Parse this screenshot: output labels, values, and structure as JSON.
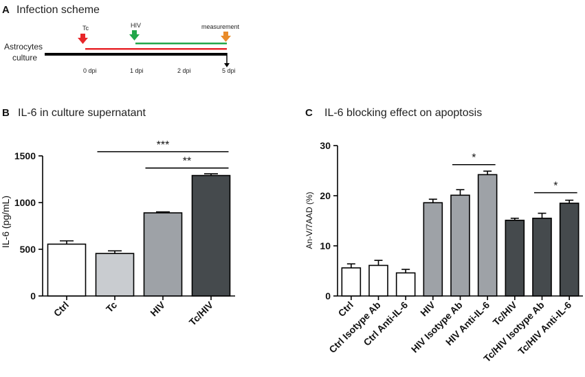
{
  "panelA": {
    "letter": "A",
    "title": "Infection scheme",
    "culture_label_line1": "Astrocytes",
    "culture_label_line2": "culture",
    "marker_tc": "Tc",
    "marker_hiv": "HIV",
    "marker_measurement": "measurement",
    "time_labels": [
      "0 dpi",
      "1 dpi",
      "2 dpi",
      "5 dpi"
    ],
    "colors": {
      "tc": "#e8262a",
      "hiv": "#22a64a",
      "measurement": "#e98b2a",
      "timeline": "#000000"
    }
  },
  "chart_data": [
    {
      "panel": "B",
      "type": "bar",
      "title": "IL-6 in culture supernatant",
      "ylabel": "IL-6 (pg/mL)",
      "xlabel": "",
      "ylim": [
        0,
        1500
      ],
      "yticks": [
        0,
        500,
        1000,
        1500
      ],
      "categories": [
        "Ctrl",
        "Tc",
        "HIV",
        "Tc/HIV"
      ],
      "values": [
        555,
        455,
        890,
        1290
      ],
      "errors": [
        35,
        28,
        10,
        18
      ],
      "colors": [
        "#ffffff",
        "#c9ccd0",
        "#9ea2a7",
        "#454a4d"
      ],
      "significance": [
        {
          "from": 1,
          "to": 3,
          "label": "***",
          "y": 1545
        },
        {
          "from": 2,
          "to": 3,
          "label": "**",
          "y": 1370
        }
      ]
    },
    {
      "panel": "C",
      "type": "bar",
      "title": "IL-6 blocking effect on apoptosis",
      "ylabel": "An-V/7AAD (%)",
      "xlabel": "",
      "ylim": [
        0,
        30
      ],
      "yticks": [
        0,
        10,
        20,
        30
      ],
      "categories": [
        "Ctrl",
        "Ctrl Isotype Ab",
        "Ctrl Anti-IL-6",
        "HIV",
        "HIV Isotype Ab",
        "HIV Anti-IL-6",
        "Tc/HIV",
        "Tc/HIV Isotype Ab",
        "Tc/HIV Anti-IL-6"
      ],
      "values": [
        5.6,
        6.1,
        4.6,
        18.6,
        20.1,
        24.2,
        15.1,
        15.5,
        18.5
      ],
      "errors": [
        0.8,
        1.0,
        0.7,
        0.7,
        1.1,
        0.7,
        0.4,
        1.0,
        0.6
      ],
      "colors": [
        "#ffffff",
        "#ffffff",
        "#ffffff",
        "#9ea2a7",
        "#9ea2a7",
        "#9ea2a7",
        "#454a4d",
        "#454a4d",
        "#454a4d"
      ],
      "significance": [
        {
          "from": 4,
          "to": 5,
          "label": "*",
          "y": 26.2
        },
        {
          "from": 7,
          "to": 8,
          "label": "*",
          "y": 20.6
        }
      ]
    }
  ]
}
